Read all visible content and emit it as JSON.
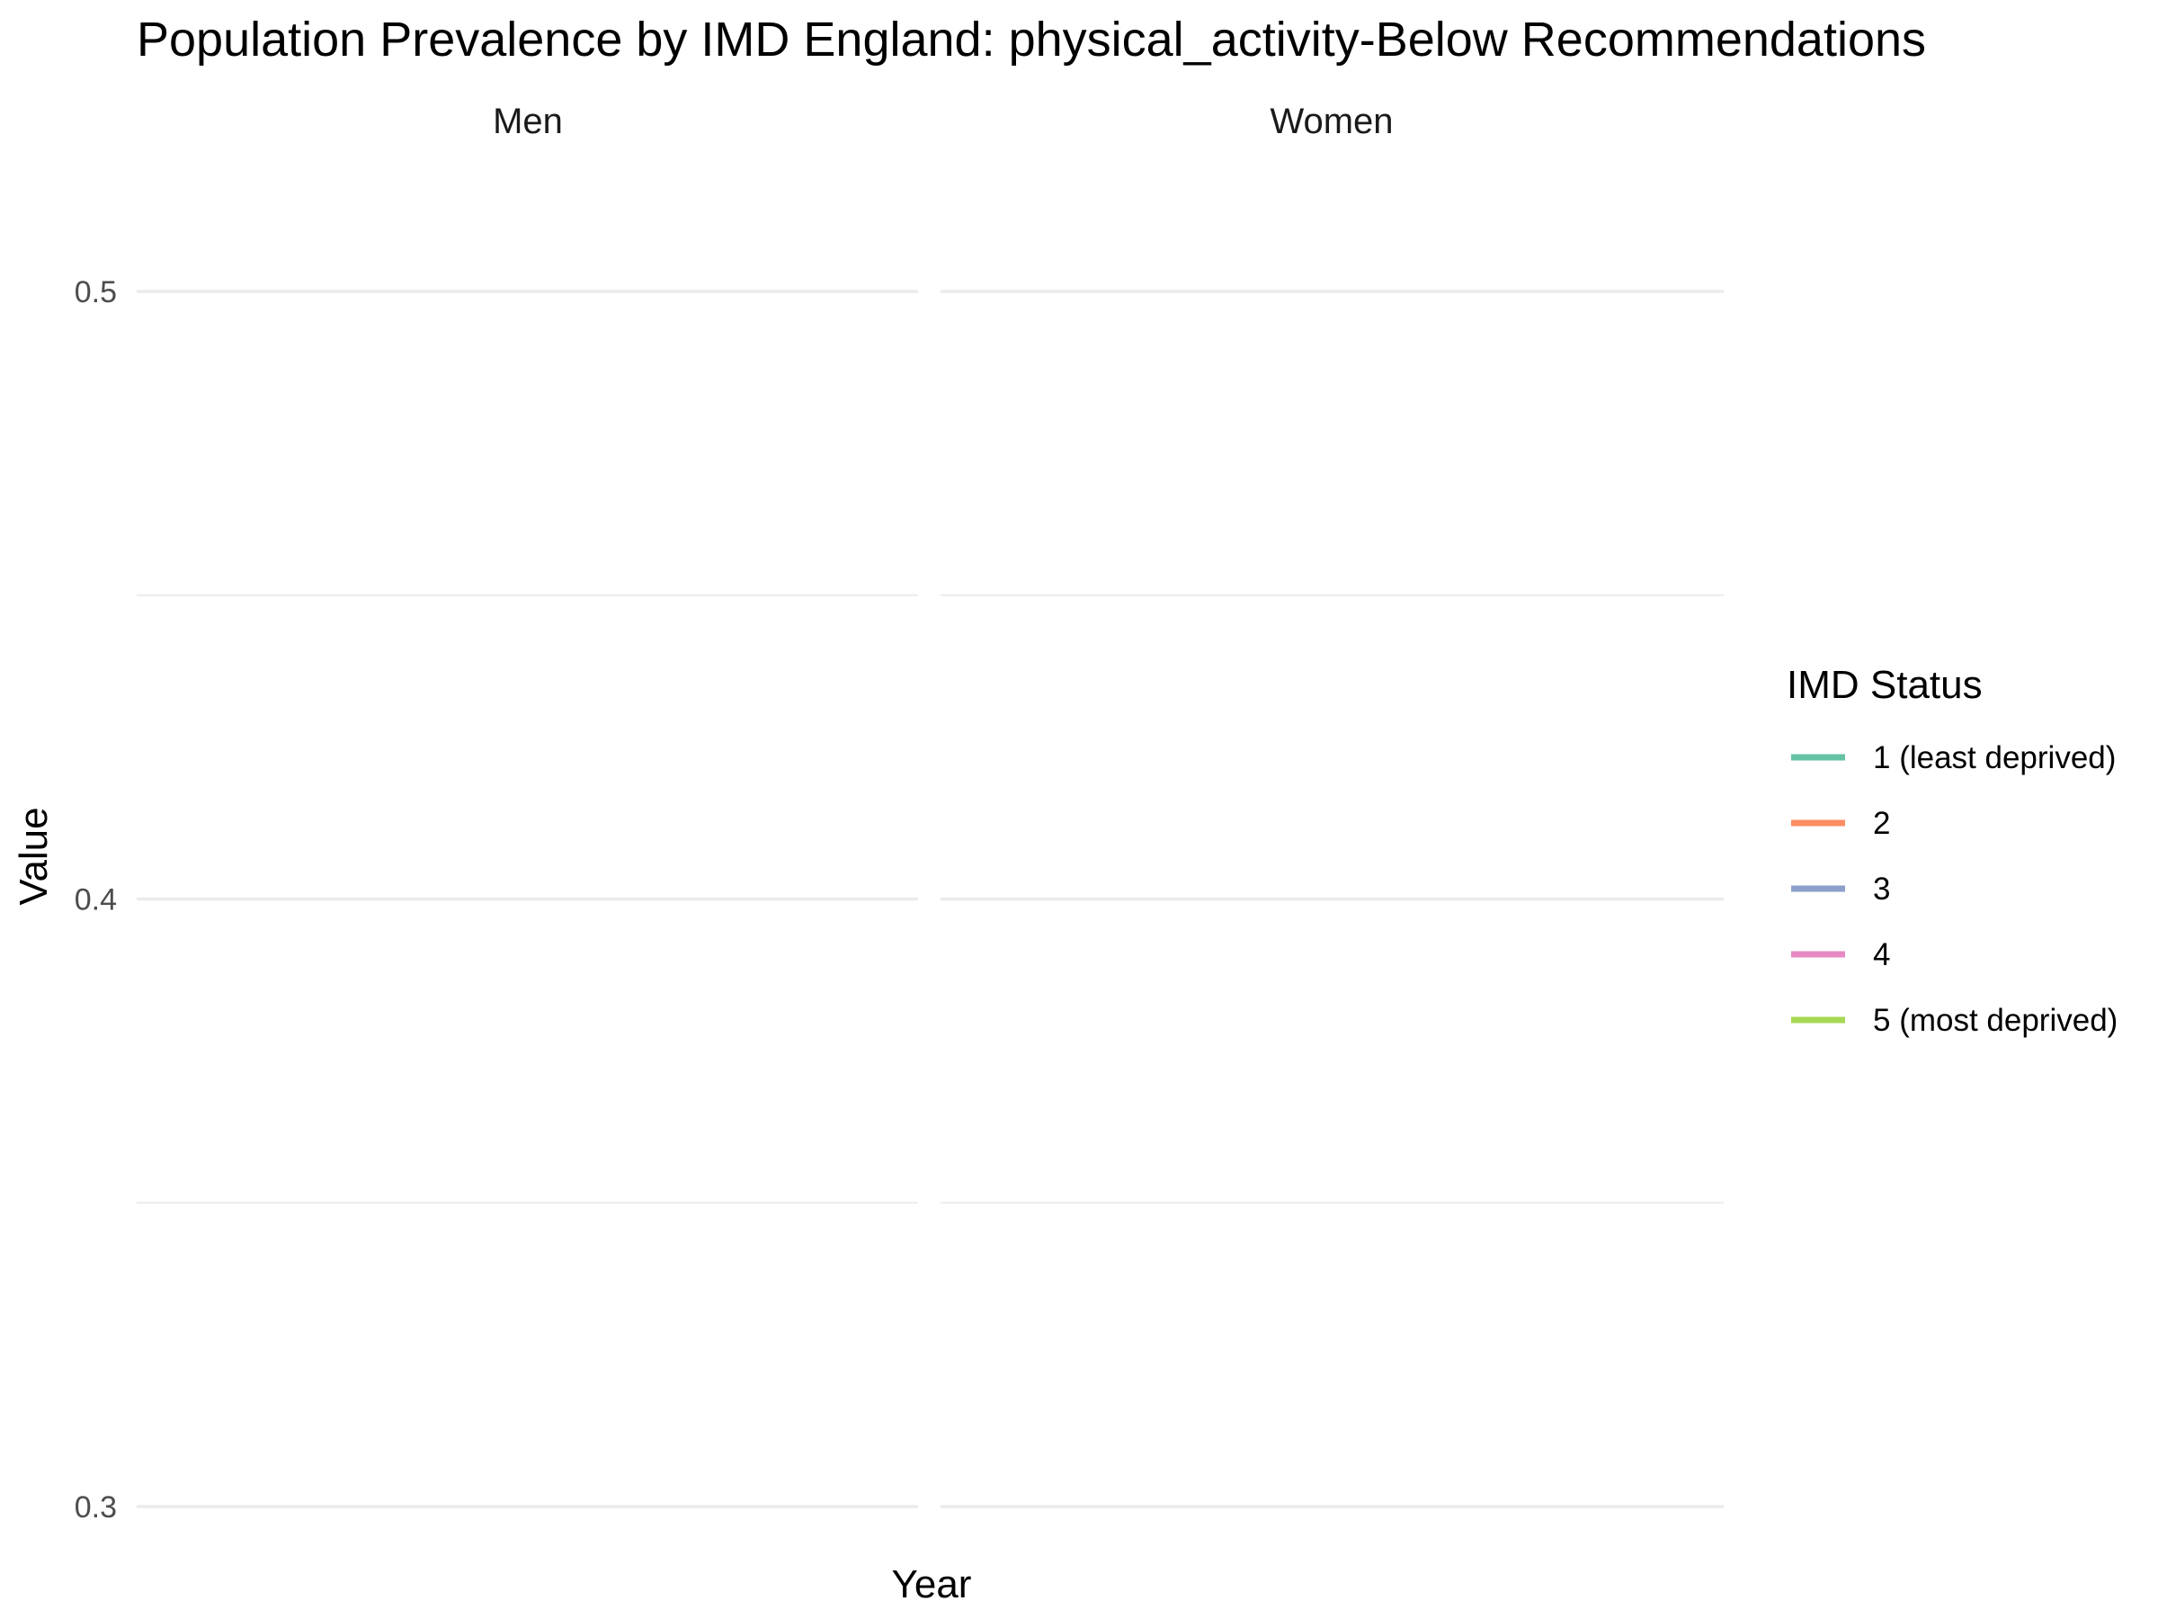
{
  "chart_data": {
    "type": "line",
    "title": "Population Prevalence by IMD England: physical_activity-Below Recommendations",
    "xlabel": "Year",
    "ylabel": "Value",
    "ylim": [
      0.3,
      0.5
    ],
    "y_ticks": [
      {
        "value": 0.3,
        "label": "0.3"
      },
      {
        "value": 0.4,
        "label": "0.4"
      },
      {
        "value": 0.5,
        "label": "0.5"
      }
    ],
    "y_minor_ticks": [
      0.35,
      0.45
    ],
    "facets": [
      {
        "label": "Men"
      },
      {
        "label": "Women"
      }
    ],
    "legend": {
      "title": "IMD Status",
      "position": "right",
      "items": [
        {
          "label": "1 (least deprived)",
          "color": "#66c2a5"
        },
        {
          "label": "2",
          "color": "#fc8d62"
        },
        {
          "label": "3",
          "color": "#8da0cb"
        },
        {
          "label": "4",
          "color": "#e78ac3"
        },
        {
          "label": "5 (most deprived)",
          "color": "#a6d854"
        }
      ]
    },
    "series": [],
    "grid": true
  }
}
